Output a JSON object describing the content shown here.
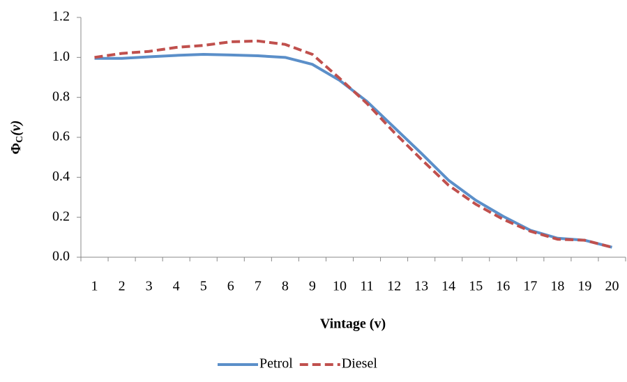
{
  "chart_data": {
    "type": "line",
    "x_label": "Vintage (v)",
    "y_label": {
      "symbol": "Φ",
      "subscript": "C",
      "argument": "(v)"
    },
    "categories": [
      "1",
      "2",
      "3",
      "4",
      "5",
      "6",
      "7",
      "8",
      "9",
      "10",
      "11",
      "12",
      "13",
      "14",
      "15",
      "16",
      "17",
      "18",
      "19",
      "20"
    ],
    "series": [
      {
        "name": "Petrol",
        "color": "#5b8fc9",
        "line_style": "solid",
        "values": [
          0.995,
          0.995,
          1.003,
          1.01,
          1.015,
          1.012,
          1.008,
          1.0,
          0.965,
          0.885,
          0.78,
          0.65,
          0.52,
          0.385,
          0.285,
          0.205,
          0.135,
          0.095,
          0.085,
          0.05
        ]
      },
      {
        "name": "Diesel",
        "color": "#c0504d",
        "line_style": "dashed",
        "values": [
          1.0,
          1.02,
          1.03,
          1.05,
          1.06,
          1.078,
          1.082,
          1.065,
          1.015,
          0.895,
          0.77,
          0.625,
          0.49,
          0.36,
          0.265,
          0.19,
          0.13,
          0.09,
          0.085,
          0.05
        ]
      }
    ],
    "ylim": [
      0,
      1.2
    ],
    "yticks": [
      {
        "value": 0,
        "label": "0.0"
      },
      0.2,
      0.4,
      0.6,
      0.8,
      {
        "value": 1,
        "label": "1.0"
      },
      1.2
    ],
    "grid": false,
    "legend": "bottom"
  }
}
